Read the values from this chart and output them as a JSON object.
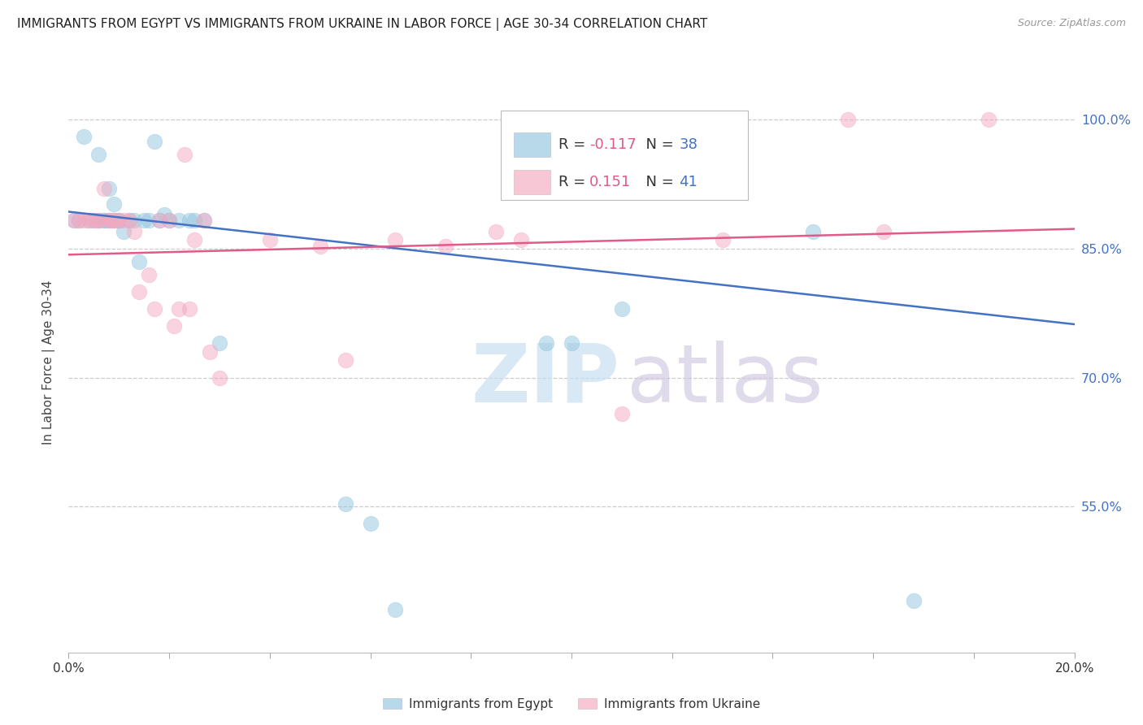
{
  "title": "IMMIGRANTS FROM EGYPT VS IMMIGRANTS FROM UKRAINE IN LABOR FORCE | AGE 30-34 CORRELATION CHART",
  "source": "Source: ZipAtlas.com",
  "ylabel": "In Labor Force | Age 30-34",
  "x_min": 0.0,
  "x_max": 0.2,
  "y_min": 0.38,
  "y_max": 1.055,
  "y_ticks": [
    0.55,
    0.7,
    0.85,
    1.0
  ],
  "y_tick_labels": [
    "55.0%",
    "70.0%",
    "85.0%",
    "100.0%"
  ],
  "legend_r_egypt": "-0.117",
  "legend_n_egypt": "38",
  "legend_r_ukraine": "0.151",
  "legend_n_ukraine": "41",
  "color_egypt": "#92c5de",
  "color_ukraine": "#f4a9c0",
  "color_egypt_line": "#4472c4",
  "color_ukraine_line": "#e05a8a",
  "egypt_x": [
    0.001,
    0.002,
    0.003,
    0.004,
    0.005,
    0.006,
    0.006,
    0.007,
    0.007,
    0.008,
    0.008,
    0.009,
    0.009,
    0.01,
    0.01,
    0.011,
    0.012,
    0.013,
    0.014,
    0.015,
    0.016,
    0.017,
    0.018,
    0.019,
    0.02,
    0.022,
    0.024,
    0.025,
    0.027,
    0.03,
    0.055,
    0.06,
    0.065,
    0.095,
    0.1,
    0.11,
    0.148,
    0.168
  ],
  "egypt_y": [
    0.883,
    0.883,
    0.98,
    0.883,
    0.883,
    0.883,
    0.96,
    0.883,
    0.883,
    0.883,
    0.92,
    0.883,
    0.902,
    0.883,
    0.883,
    0.87,
    0.883,
    0.883,
    0.835,
    0.883,
    0.883,
    0.975,
    0.883,
    0.89,
    0.883,
    0.883,
    0.883,
    0.883,
    0.883,
    0.74,
    0.553,
    0.53,
    0.43,
    0.74,
    0.74,
    0.78,
    0.87,
    0.44
  ],
  "ukraine_x": [
    0.001,
    0.002,
    0.003,
    0.004,
    0.005,
    0.006,
    0.006,
    0.007,
    0.008,
    0.008,
    0.009,
    0.009,
    0.01,
    0.011,
    0.012,
    0.013,
    0.014,
    0.016,
    0.017,
    0.018,
    0.02,
    0.021,
    0.022,
    0.023,
    0.024,
    0.025,
    0.027,
    0.028,
    0.03,
    0.04,
    0.05,
    0.055,
    0.065,
    0.075,
    0.085,
    0.09,
    0.11,
    0.13,
    0.155,
    0.162,
    0.183
  ],
  "ukraine_y": [
    0.883,
    0.883,
    0.883,
    0.883,
    0.883,
    0.883,
    0.883,
    0.92,
    0.883,
    0.883,
    0.883,
    0.883,
    0.883,
    0.883,
    0.883,
    0.87,
    0.8,
    0.82,
    0.78,
    0.883,
    0.883,
    0.76,
    0.78,
    0.96,
    0.78,
    0.86,
    0.883,
    0.73,
    0.7,
    0.86,
    0.853,
    0.72,
    0.86,
    0.853,
    0.87,
    0.86,
    0.658,
    0.86,
    1.0,
    0.87,
    1.0
  ],
  "line_egypt_x0": 0.0,
  "line_egypt_y0": 0.893,
  "line_egypt_x1": 0.2,
  "line_egypt_y1": 0.762,
  "line_ukraine_x0": 0.0,
  "line_ukraine_y0": 0.843,
  "line_ukraine_x1": 0.2,
  "line_ukraine_y1": 0.873
}
